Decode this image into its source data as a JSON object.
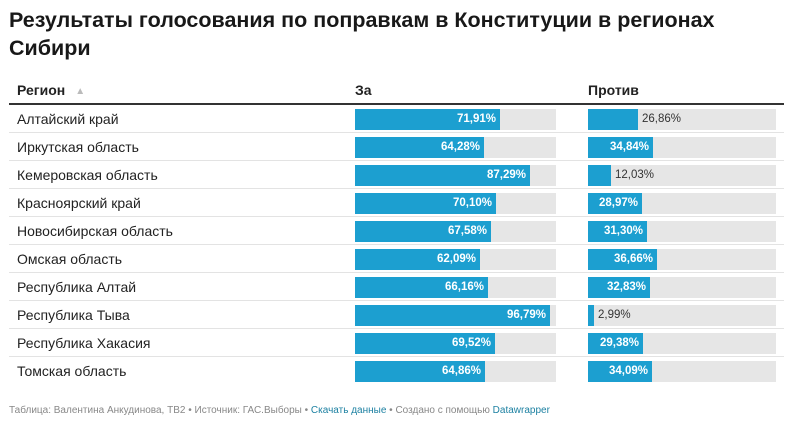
{
  "title": "Результаты голосования по поправкам в Конституции в регионах Сибири",
  "header": {
    "region": "Регион",
    "za": "За",
    "protiv": "Против"
  },
  "chart_data": {
    "type": "table",
    "columns": [
      "Регион",
      "За",
      "Против"
    ],
    "rows": [
      {
        "region": "Алтайский край",
        "za": 71.91,
        "za_label": "71,91%",
        "protiv": 26.86,
        "protiv_label": "26,86%"
      },
      {
        "region": "Иркутская область",
        "za": 64.28,
        "za_label": "64,28%",
        "protiv": 34.84,
        "protiv_label": "34,84%"
      },
      {
        "region": "Кемеровская область",
        "za": 87.29,
        "za_label": "87,29%",
        "protiv": 12.03,
        "protiv_label": "12,03%"
      },
      {
        "region": "Красноярский край",
        "za": 70.1,
        "za_label": "70,10%",
        "protiv": 28.97,
        "protiv_label": "28,97%"
      },
      {
        "region": "Новосибирская область",
        "za": 67.58,
        "za_label": "67,58%",
        "protiv": 31.3,
        "protiv_label": "31,30%"
      },
      {
        "region": "Омская область",
        "za": 62.09,
        "za_label": "62,09%",
        "protiv": 36.66,
        "protiv_label": "36,66%"
      },
      {
        "region": "Республика Алтай",
        "za": 66.16,
        "za_label": "66,16%",
        "protiv": 32.83,
        "protiv_label": "32,83%"
      },
      {
        "region": "Республика Тыва",
        "za": 96.79,
        "za_label": "96,79%",
        "protiv": 2.99,
        "protiv_label": "2,99%"
      },
      {
        "region": "Республика Хакасия",
        "za": 69.52,
        "za_label": "69,52%",
        "protiv": 29.38,
        "protiv_label": "29,38%"
      },
      {
        "region": "Томская область",
        "za": 64.86,
        "za_label": "64,86%",
        "protiv": 34.09,
        "protiv_label": "34,09%"
      }
    ],
    "xlim": [
      0,
      100
    ],
    "bar_color": "#1c9fd0",
    "track_color": "#e6e6e6"
  },
  "footer": {
    "prefix": "Таблица: Валентина Анкудинова, ТВ2 • Источник: ГАС.Выборы • ",
    "download_link": "Скачать данные",
    "middle": " • Создано с помощью ",
    "datawrapper_link": "Datawrapper"
  },
  "icons": {
    "sort": "sort-ascending-icon"
  }
}
